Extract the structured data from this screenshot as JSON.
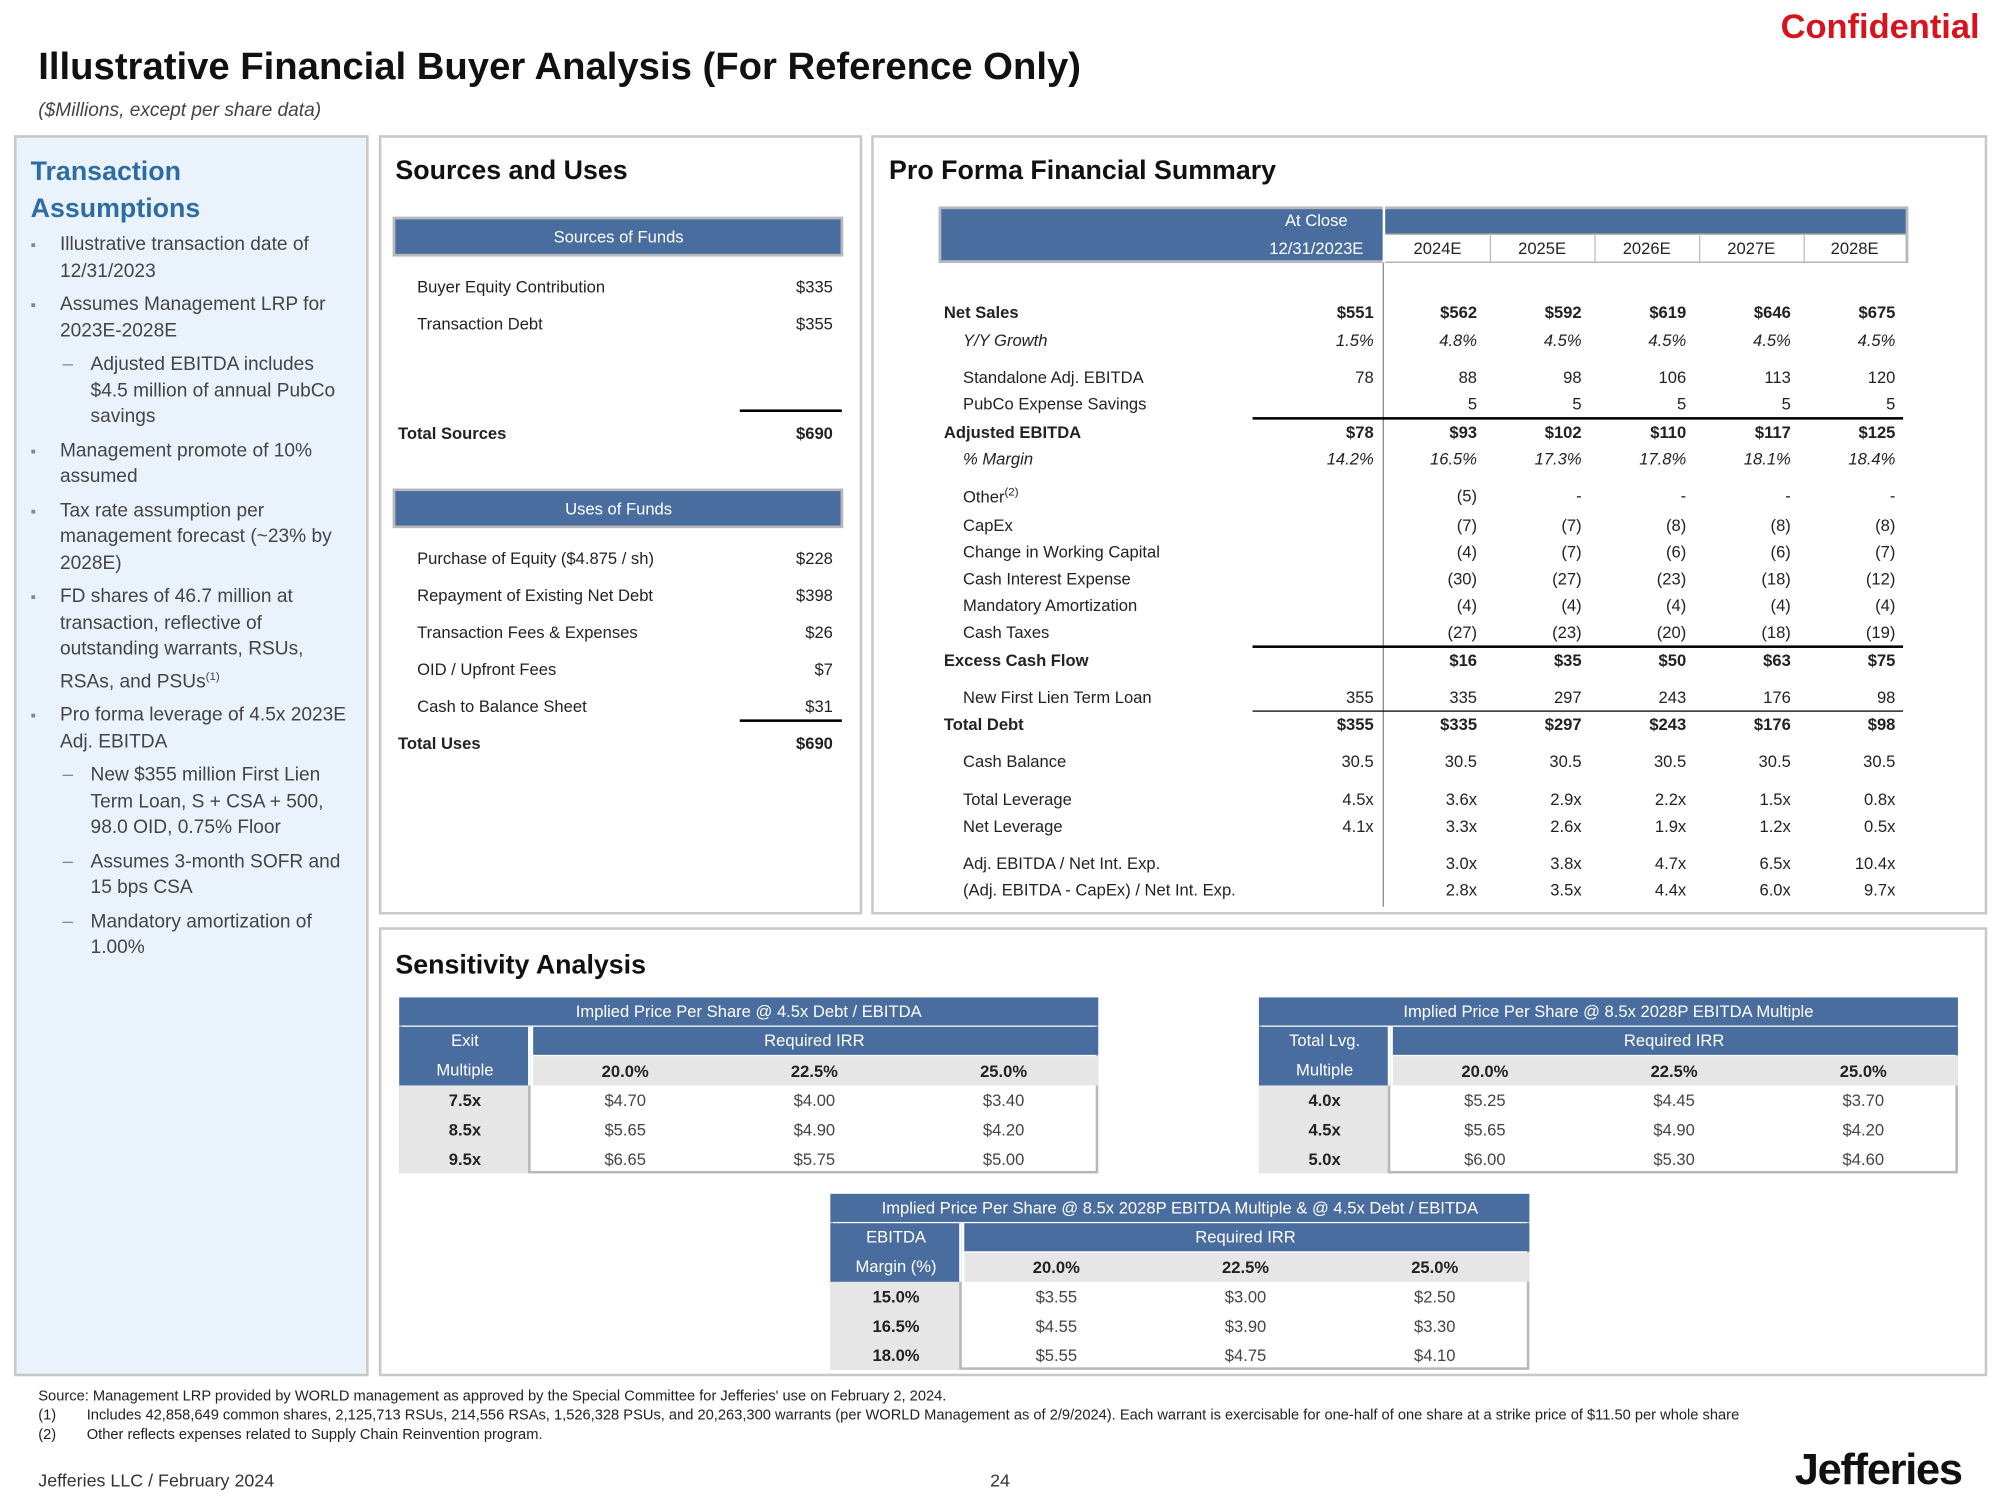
{
  "header": {
    "confidential": "Confidential",
    "title": "Illustrative Financial Buyer Analysis (For Reference Only)",
    "subtitle": "($Millions, except per share data)"
  },
  "assumptions": {
    "title": "Transaction Assumptions",
    "items": [
      {
        "text": "Illustrative transaction date of 12/31/2023"
      },
      {
        "text": "Assumes Management LRP for 2023E-2028E",
        "sub": [
          "Adjusted EBITDA includes $4.5 million of annual PubCo savings"
        ]
      },
      {
        "text": "Management promote of 10% assumed"
      },
      {
        "text": "Tax rate assumption per management forecast (~23% by 2028E)"
      },
      {
        "text": "FD shares of 46.7 million at transaction, reflective of outstanding warrants, RSUs, RSAs, and PSUs",
        "sup": "(1)"
      },
      {
        "text": "Pro forma leverage of 4.5x 2023E Adj. EBITDA",
        "sub": [
          "New $355 million First Lien Term Loan, S + CSA + 500, 98.0 OID, 0.75% Floor",
          "Assumes 3-month SOFR and 15 bps CSA",
          "Mandatory amortization of 1.00%"
        ]
      }
    ]
  },
  "sources_uses": {
    "title": "Sources and Uses",
    "sources_header": "Sources of Funds",
    "sources": [
      [
        "Buyer Equity Contribution",
        "$335"
      ],
      [
        "Transaction Debt",
        "$355"
      ]
    ],
    "total_sources": [
      "Total Sources",
      "$690"
    ],
    "uses_header": "Uses of Funds",
    "uses": [
      [
        "Purchase of Equity ($4.875 / sh)",
        "$228"
      ],
      [
        "Repayment of Existing Net Debt",
        "$398"
      ],
      [
        "Transaction Fees & Expenses",
        "$26"
      ],
      [
        "OID / Upfront Fees",
        "$7"
      ],
      [
        "Cash to Balance Sheet",
        "$31"
      ]
    ],
    "total_uses": [
      "Total Uses",
      "$690"
    ]
  },
  "pro_forma": {
    "title": "Pro Forma Financial Summary",
    "at_close": "At Close",
    "columns": [
      "12/31/2023E",
      "2024E",
      "2025E",
      "2026E",
      "2027E",
      "2028E"
    ],
    "rows": [
      {
        "label": "Net Sales",
        "style": "bold",
        "values": [
          "$551",
          "$562",
          "$592",
          "$619",
          "$646",
          "$675"
        ]
      },
      {
        "label": "Y/Y Growth",
        "style": "italic",
        "values": [
          "1.5%",
          "4.8%",
          "4.5%",
          "4.5%",
          "4.5%",
          "4.5%"
        ]
      },
      {
        "label": "Standalone Adj. EBITDA",
        "values": [
          "78",
          "88",
          "98",
          "106",
          "113",
          "120"
        ]
      },
      {
        "label": "PubCo Expense Savings",
        "values": [
          null,
          "5",
          "5",
          "5",
          "5",
          "5"
        ]
      },
      {
        "label": "Adjusted EBITDA",
        "style": "bold",
        "values": [
          "$78",
          "$93",
          "$102",
          "$110",
          "$117",
          "$125"
        ]
      },
      {
        "label": "% Margin",
        "style": "italic",
        "values": [
          "14.2%",
          "16.5%",
          "17.3%",
          "17.8%",
          "18.1%",
          "18.4%"
        ]
      },
      {
        "label": "Other",
        "sup": "(2)",
        "values": [
          null,
          "(5)",
          "-",
          "-",
          "-",
          "-"
        ]
      },
      {
        "label": "CapEx",
        "values": [
          null,
          "(7)",
          "(7)",
          "(8)",
          "(8)",
          "(8)"
        ]
      },
      {
        "label": "Change in Working Capital",
        "values": [
          null,
          "(4)",
          "(7)",
          "(6)",
          "(6)",
          "(7)"
        ]
      },
      {
        "label": "Cash Interest Expense",
        "values": [
          null,
          "(30)",
          "(27)",
          "(23)",
          "(18)",
          "(12)"
        ]
      },
      {
        "label": "Mandatory Amortization",
        "values": [
          null,
          "(4)",
          "(4)",
          "(4)",
          "(4)",
          "(4)"
        ]
      },
      {
        "label": "Cash Taxes",
        "values": [
          null,
          "(27)",
          "(23)",
          "(20)",
          "(18)",
          "(19)"
        ]
      },
      {
        "label": "Excess Cash Flow",
        "style": "bold",
        "values": [
          null,
          "$16",
          "$35",
          "$50",
          "$63",
          "$75"
        ]
      },
      {
        "label": "New First Lien Term Loan",
        "values": [
          "355",
          "335",
          "297",
          "243",
          "176",
          "98"
        ]
      },
      {
        "label": "Total Debt",
        "style": "bold",
        "values": [
          "$355",
          "$335",
          "$297",
          "$243",
          "$176",
          "$98"
        ]
      },
      {
        "label": "Cash Balance",
        "values": [
          "30.5",
          "30.5",
          "30.5",
          "30.5",
          "30.5",
          "30.5"
        ]
      },
      {
        "label": "Total Leverage",
        "values": [
          "4.5x",
          "3.6x",
          "2.9x",
          "2.2x",
          "1.5x",
          "0.8x"
        ]
      },
      {
        "label": "Net Leverage",
        "values": [
          "4.1x",
          "3.3x",
          "2.6x",
          "1.9x",
          "1.2x",
          "0.5x"
        ]
      },
      {
        "label": "Adj. EBITDA / Net Int. Exp.",
        "values": [
          null,
          "3.0x",
          "3.8x",
          "4.7x",
          "6.5x",
          "10.4x"
        ]
      },
      {
        "label": "(Adj. EBITDA - CapEx) / Net Int. Exp.",
        "values": [
          null,
          "2.8x",
          "3.5x",
          "4.4x",
          "6.0x",
          "9.7x"
        ]
      }
    ]
  },
  "sensitivity": {
    "title": "Sensitivity Analysis",
    "tables": [
      {
        "title": "Implied Price Per Share @ 4.5x Debt / EBITDA",
        "row_header": [
          "Exit",
          "Multiple"
        ],
        "col_header": "Required IRR",
        "columns": [
          "20.0%",
          "22.5%",
          "25.0%"
        ],
        "rows": [
          {
            "label": "7.5x",
            "values": [
              "$4.70",
              "$4.00",
              "$3.40"
            ]
          },
          {
            "label": "8.5x",
            "values": [
              "$5.65",
              "$4.90",
              "$4.20"
            ]
          },
          {
            "label": "9.5x",
            "values": [
              "$6.65",
              "$5.75",
              "$5.00"
            ]
          }
        ]
      },
      {
        "title": "Implied Price Per Share @ 8.5x 2028P EBITDA Multiple",
        "row_header": [
          "Total Lvg.",
          "Multiple"
        ],
        "col_header": "Required IRR",
        "columns": [
          "20.0%",
          "22.5%",
          "25.0%"
        ],
        "rows": [
          {
            "label": "4.0x",
            "values": [
              "$5.25",
              "$4.45",
              "$3.70"
            ]
          },
          {
            "label": "4.5x",
            "values": [
              "$5.65",
              "$4.90",
              "$4.20"
            ]
          },
          {
            "label": "5.0x",
            "values": [
              "$6.00",
              "$5.30",
              "$4.60"
            ]
          }
        ]
      },
      {
        "title": "Implied Price Per Share @ 8.5x 2028P EBITDA Multiple & @ 4.5x Debt / EBITDA",
        "row_header": [
          "EBITDA",
          "Margin (%)"
        ],
        "col_header": "Required IRR",
        "columns": [
          "20.0%",
          "22.5%",
          "25.0%"
        ],
        "rows": [
          {
            "label": "15.0%",
            "values": [
              "$3.55",
              "$3.00",
              "$2.50"
            ]
          },
          {
            "label": "16.5%",
            "values": [
              "$4.55",
              "$3.90",
              "$3.30"
            ]
          },
          {
            "label": "18.0%",
            "values": [
              "$5.55",
              "$4.75",
              "$4.10"
            ]
          }
        ]
      }
    ]
  },
  "footnotes": {
    "source": "Source: Management LRP provided by WORLD management as approved by the Special Committee for Jefferies' use on February 2, 2024.",
    "notes": [
      {
        "marker": "(1)",
        "text": "Includes 42,858,649 common shares, 2,125,713 RSUs, 214,556 RSAs, 1,526,328 PSUs, and 20,263,300 warrants (per WORLD Management as of 2/9/2024). Each warrant is exercisable for one-half of one share at a strike price of $11.50 per whole share"
      },
      {
        "marker": "(2)",
        "text": "Other reflects expenses related to Supply Chain Reinvention program."
      }
    ]
  },
  "footer": {
    "company": "Jefferies LLC / February 2024",
    "page": "24",
    "logo": "Jefferies"
  }
}
